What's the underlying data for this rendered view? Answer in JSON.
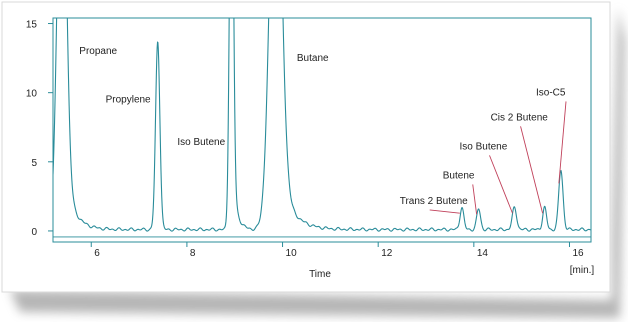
{
  "chart_data": {
    "type": "line",
    "title": "",
    "xlabel": "Time",
    "ylabel": "",
    "x_unit_label": "[min.]",
    "xlim": [
      5.2,
      16.45
    ],
    "ylim": [
      -0.8,
      15.4
    ],
    "x_ticks": [
      6,
      8,
      10,
      12,
      14,
      16
    ],
    "y_ticks": [
      0,
      5,
      10,
      15
    ],
    "grid": false,
    "colors": {
      "trace": "#2a8c9a",
      "axis": "#2a8c9a",
      "label_line": "#c0405a",
      "frame_bg": "#ffffff",
      "shadow": "#7a7a7a"
    },
    "baseline": 0.1,
    "peaks": [
      {
        "name": "Propane",
        "rt": 5.38,
        "height": 30,
        "width": 0.09
      },
      {
        "name": "Propylene",
        "rt": 7.39,
        "height": 13.6,
        "width": 0.045
      },
      {
        "name": "Iso Butene",
        "rt": 8.93,
        "height": 30,
        "width": 0.04
      },
      {
        "name": "Butane",
        "rt": 9.85,
        "height": 30,
        "width": 0.12
      },
      {
        "name": "Trans 2 Butene",
        "rt": 13.75,
        "height": 1.6,
        "width": 0.04
      },
      {
        "name": "Butene",
        "rt": 14.1,
        "height": 1.5,
        "width": 0.04
      },
      {
        "name": "Iso Butene",
        "rt": 14.85,
        "height": 1.6,
        "width": 0.045
      },
      {
        "name": "Cis 2 Butene",
        "rt": 15.48,
        "height": 1.6,
        "width": 0.04
      },
      {
        "name": "Iso-C5",
        "rt": 15.82,
        "height": 4.3,
        "width": 0.045
      }
    ],
    "annotations": [
      {
        "text": "Propane",
        "x": 5.75,
        "y": 12.8,
        "peak_ref": null
      },
      {
        "text": "Propylene",
        "x": 6.3,
        "y": 9.3,
        "peak_ref": null
      },
      {
        "text": "Iso Butene",
        "x": 7.8,
        "y": 6.2,
        "peak_ref": null
      },
      {
        "text": "Butane",
        "x": 10.3,
        "y": 12.3,
        "peak_ref": null
      },
      {
        "text": "Trans 2 Butene",
        "x": 12.45,
        "y": 1.95,
        "peak_ref": 4
      },
      {
        "text": "Butene",
        "x": 13.35,
        "y": 3.8,
        "peak_ref": 5
      },
      {
        "text": "Iso Butene",
        "x": 13.7,
        "y": 5.9,
        "peak_ref": 6
      },
      {
        "text": "Cis 2 Butene",
        "x": 14.35,
        "y": 8.0,
        "peak_ref": 7
      },
      {
        "text": "Iso-C5",
        "x": 15.3,
        "y": 9.8,
        "peak_ref": 8
      }
    ]
  }
}
